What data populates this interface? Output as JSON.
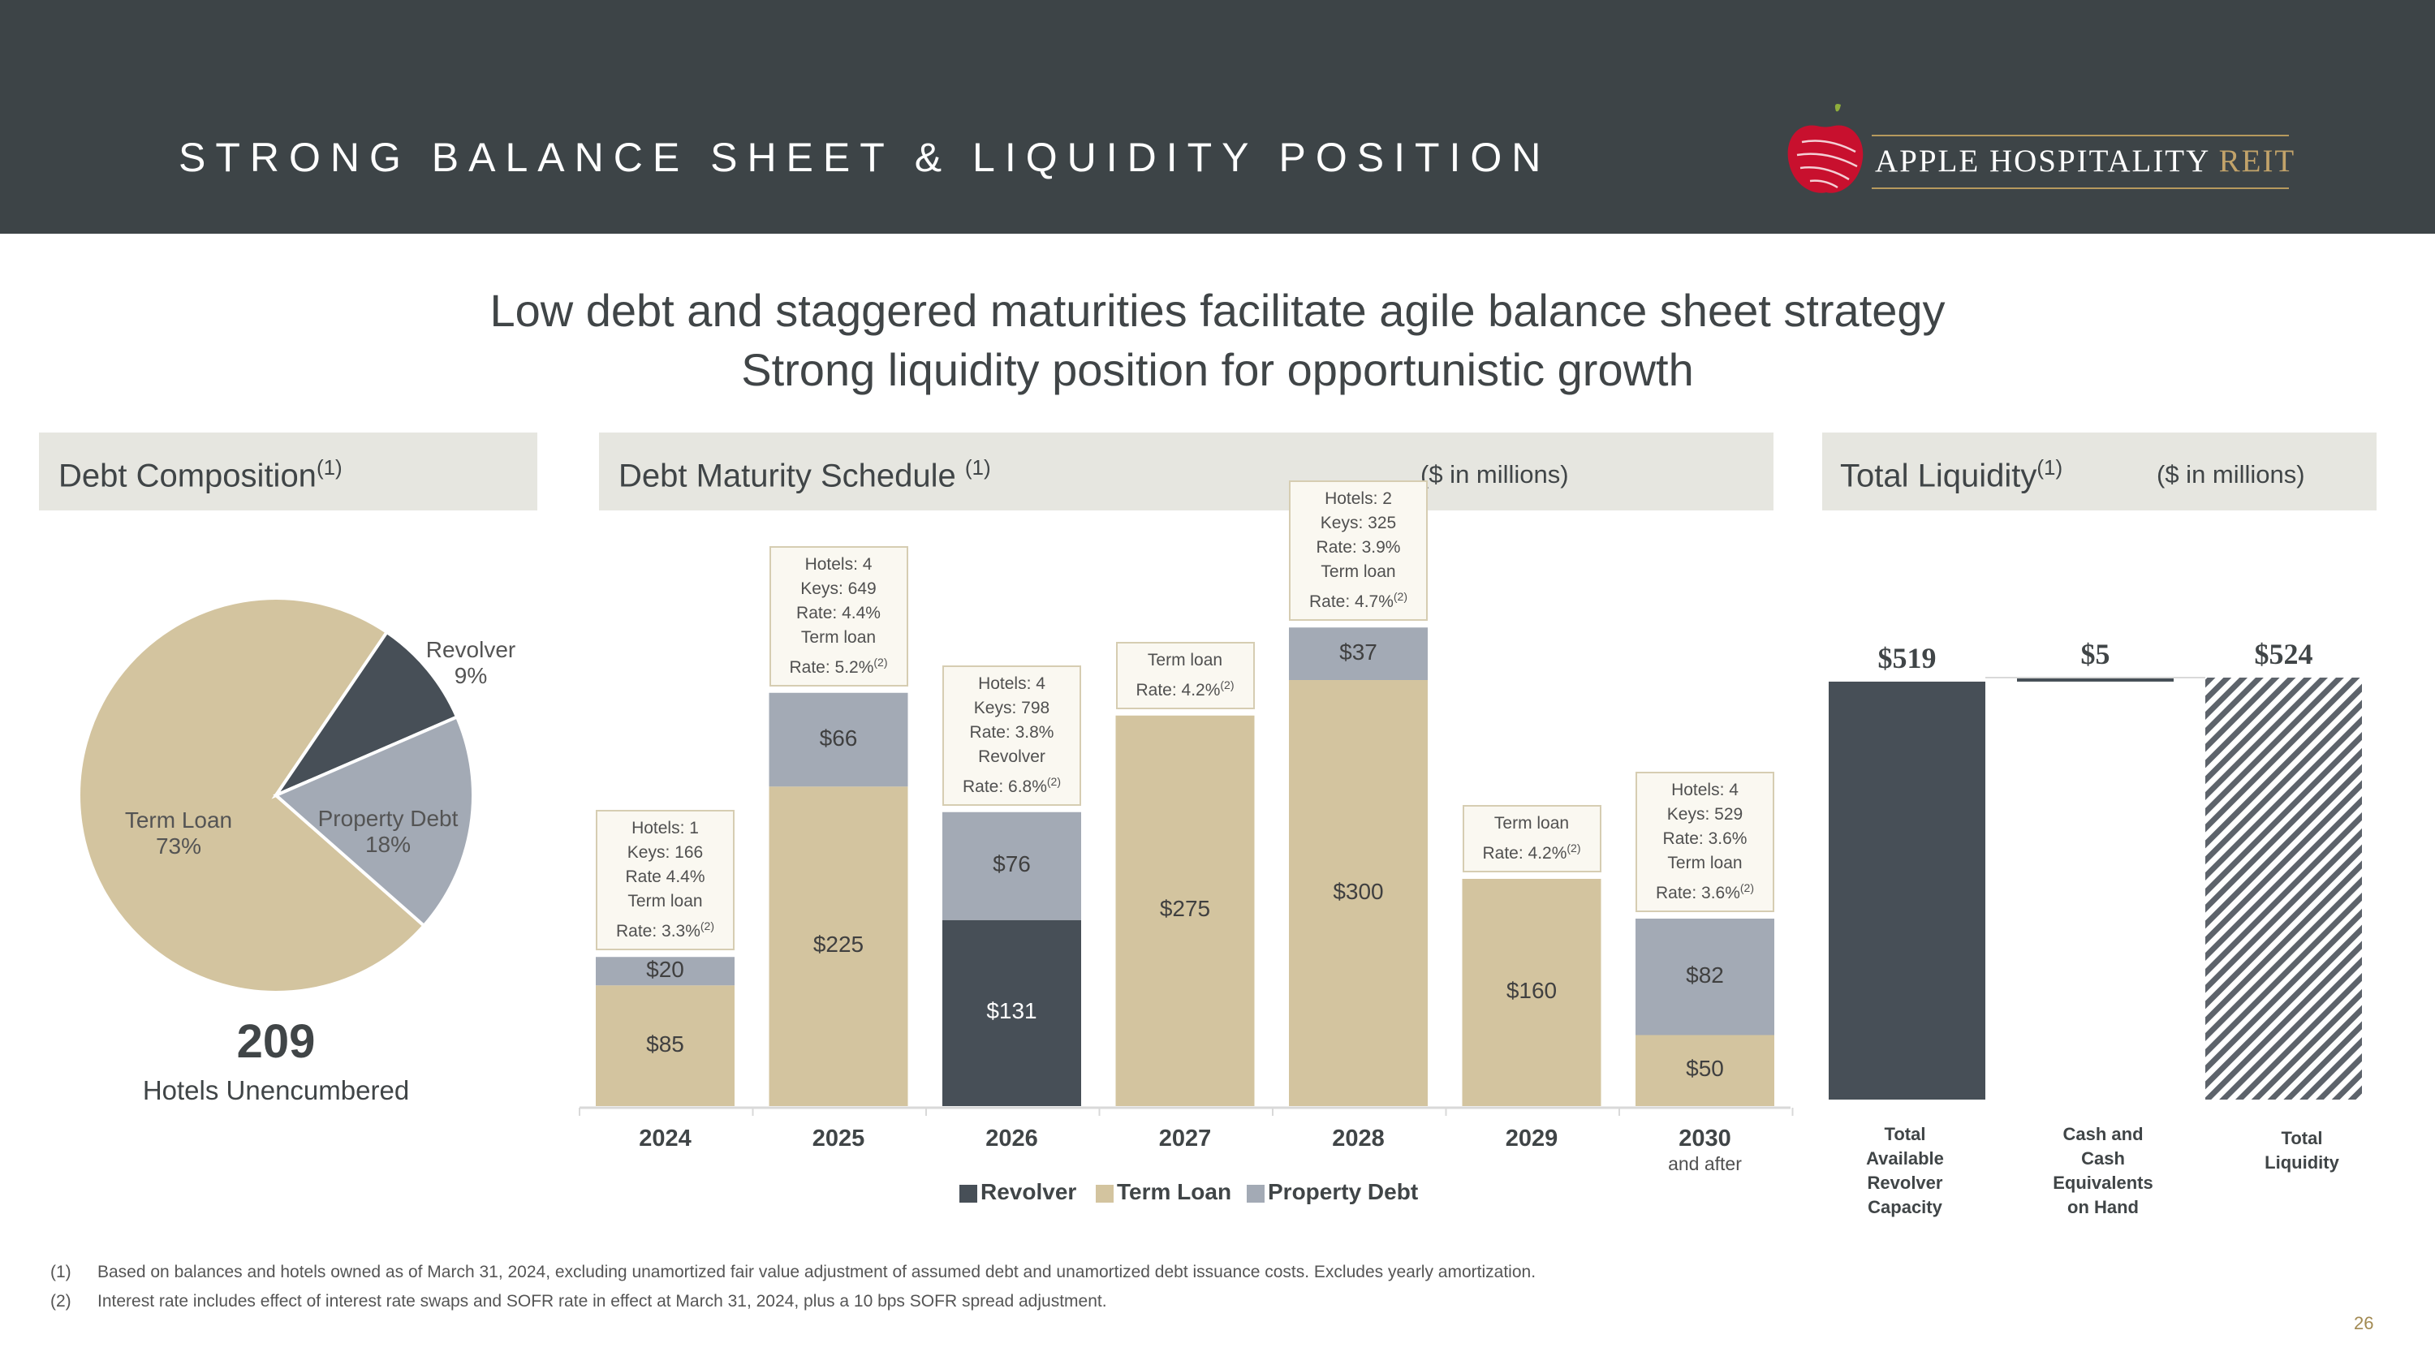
{
  "header": {
    "title": "STRONG BALANCE SHEET & LIQUIDITY POSITION",
    "logo_main": "APPLE HOSPITALITY",
    "logo_accent": "REIT"
  },
  "subtitle": {
    "line1": "Low debt and staggered maturities facilitate agile balance sheet strategy",
    "line2": "Strong liquidity position for opportunistic growth"
  },
  "colors": {
    "term_loan": "#d3c49f",
    "revolver": "#474f57",
    "property_debt": "#a3aab5",
    "header_bg": "#3d4447",
    "accent_gold": "#b69a5e"
  },
  "debt_composition": {
    "title": "Debt Composition",
    "title_note": "(1)",
    "unencumbered_count": "209",
    "unencumbered_label": "Hotels Unencumbered"
  },
  "maturity_schedule": {
    "title": "Debt Maturity Schedule",
    "title_note": "(1)",
    "unit": "($ in millions)",
    "legend": [
      "Revolver",
      "Term Loan",
      "Property Debt"
    ]
  },
  "total_liquidity": {
    "title": "Total Liquidity",
    "title_note": "(1)",
    "unit": "($ in millions)"
  },
  "chart_data": [
    {
      "type": "pie",
      "title": "Debt Composition",
      "slices": [
        {
          "label": "Term Loan",
          "value": 73,
          "display": "73%"
        },
        {
          "label": "Revolver",
          "value": 9,
          "display": "9%"
        },
        {
          "label": "Property Debt",
          "value": 18,
          "display": "18%"
        }
      ]
    },
    {
      "type": "bar",
      "stacked": true,
      "title": "Debt Maturity Schedule",
      "categories": [
        "2024",
        "2025",
        "2026",
        "2027",
        "2028",
        "2029",
        "2030"
      ],
      "category_sublabels": [
        "",
        "",
        "",
        "",
        "",
        "",
        "and after"
      ],
      "series": [
        {
          "name": "Revolver",
          "values": [
            0,
            0,
            131,
            0,
            0,
            0,
            0
          ]
        },
        {
          "name": "Term Loan",
          "values": [
            85,
            225,
            0,
            275,
            300,
            160,
            50
          ]
        },
        {
          "name": "Property Debt",
          "values": [
            20,
            66,
            76,
            0,
            37,
            0,
            82
          ]
        }
      ],
      "data_labels": [
        {
          "Revolver": "",
          "Term Loan": "$85",
          "Property Debt": "$20"
        },
        {
          "Revolver": "",
          "Term Loan": "$225",
          "Property Debt": "$66"
        },
        {
          "Revolver": "$131",
          "Term Loan": "",
          "Property Debt": "$76"
        },
        {
          "Revolver": "",
          "Term Loan": "$275",
          "Property Debt": ""
        },
        {
          "Revolver": "",
          "Term Loan": "$300",
          "Property Debt": "$37"
        },
        {
          "Revolver": "",
          "Term Loan": "$160",
          "Property Debt": ""
        },
        {
          "Revolver": "",
          "Term Loan": "$50",
          "Property Debt": "$82"
        }
      ],
      "annotations": [
        [
          "Hotels: 1",
          "Keys: 166",
          "Rate 4.4%",
          "Term loan",
          "Rate: 3.3%"
        ],
        [
          "Hotels: 4",
          "Keys: 649",
          "Rate: 4.4%",
          "Term loan",
          "Rate: 5.2%"
        ],
        [
          "Hotels: 4",
          "Keys: 798",
          "Rate: 3.8%",
          "Revolver",
          "Rate: 6.8%"
        ],
        [
          "Term loan",
          "Rate: 4.2%"
        ],
        [
          "Hotels: 2",
          "Keys: 325",
          "Rate: 3.9%",
          "Term loan",
          "Rate: 4.7%"
        ],
        [
          "Term loan",
          "Rate: 4.2%"
        ],
        [
          "Hotels: 4",
          "Keys: 529",
          "Rate: 3.6%",
          "Term loan",
          "Rate: 3.6%"
        ]
      ],
      "annotation_note": "(2)",
      "ylim": [
        0,
        345
      ]
    },
    {
      "type": "bar",
      "subtype": "waterfall",
      "title": "Total Liquidity",
      "categories": [
        "Total Available Revolver Capacity",
        "Cash and Cash Equivalents on Hand",
        "Total Liquidity"
      ],
      "category_lines": [
        [
          "Total",
          "Available",
          "Revolver",
          "Capacity"
        ],
        [
          "Cash and",
          "Cash",
          "Equivalents",
          "on Hand"
        ],
        [
          "Total",
          "Liquidity"
        ]
      ],
      "values": [
        519,
        5,
        524
      ],
      "labels": [
        "$519",
        "$5",
        "$524"
      ],
      "ylim": [
        0,
        524
      ]
    }
  ],
  "footnotes": [
    {
      "num": "(1)",
      "text": "Based on balances and hotels owned as of March 31, 2024, excluding unamortized fair value adjustment of assumed debt and unamortized debt issuance costs. Excludes yearly amortization."
    },
    {
      "num": "(2)",
      "text": "Interest rate includes effect of interest rate swaps and SOFR rate in effect at March 31, 2024, plus a 10 bps SOFR spread adjustment."
    }
  ],
  "page_number": "26"
}
